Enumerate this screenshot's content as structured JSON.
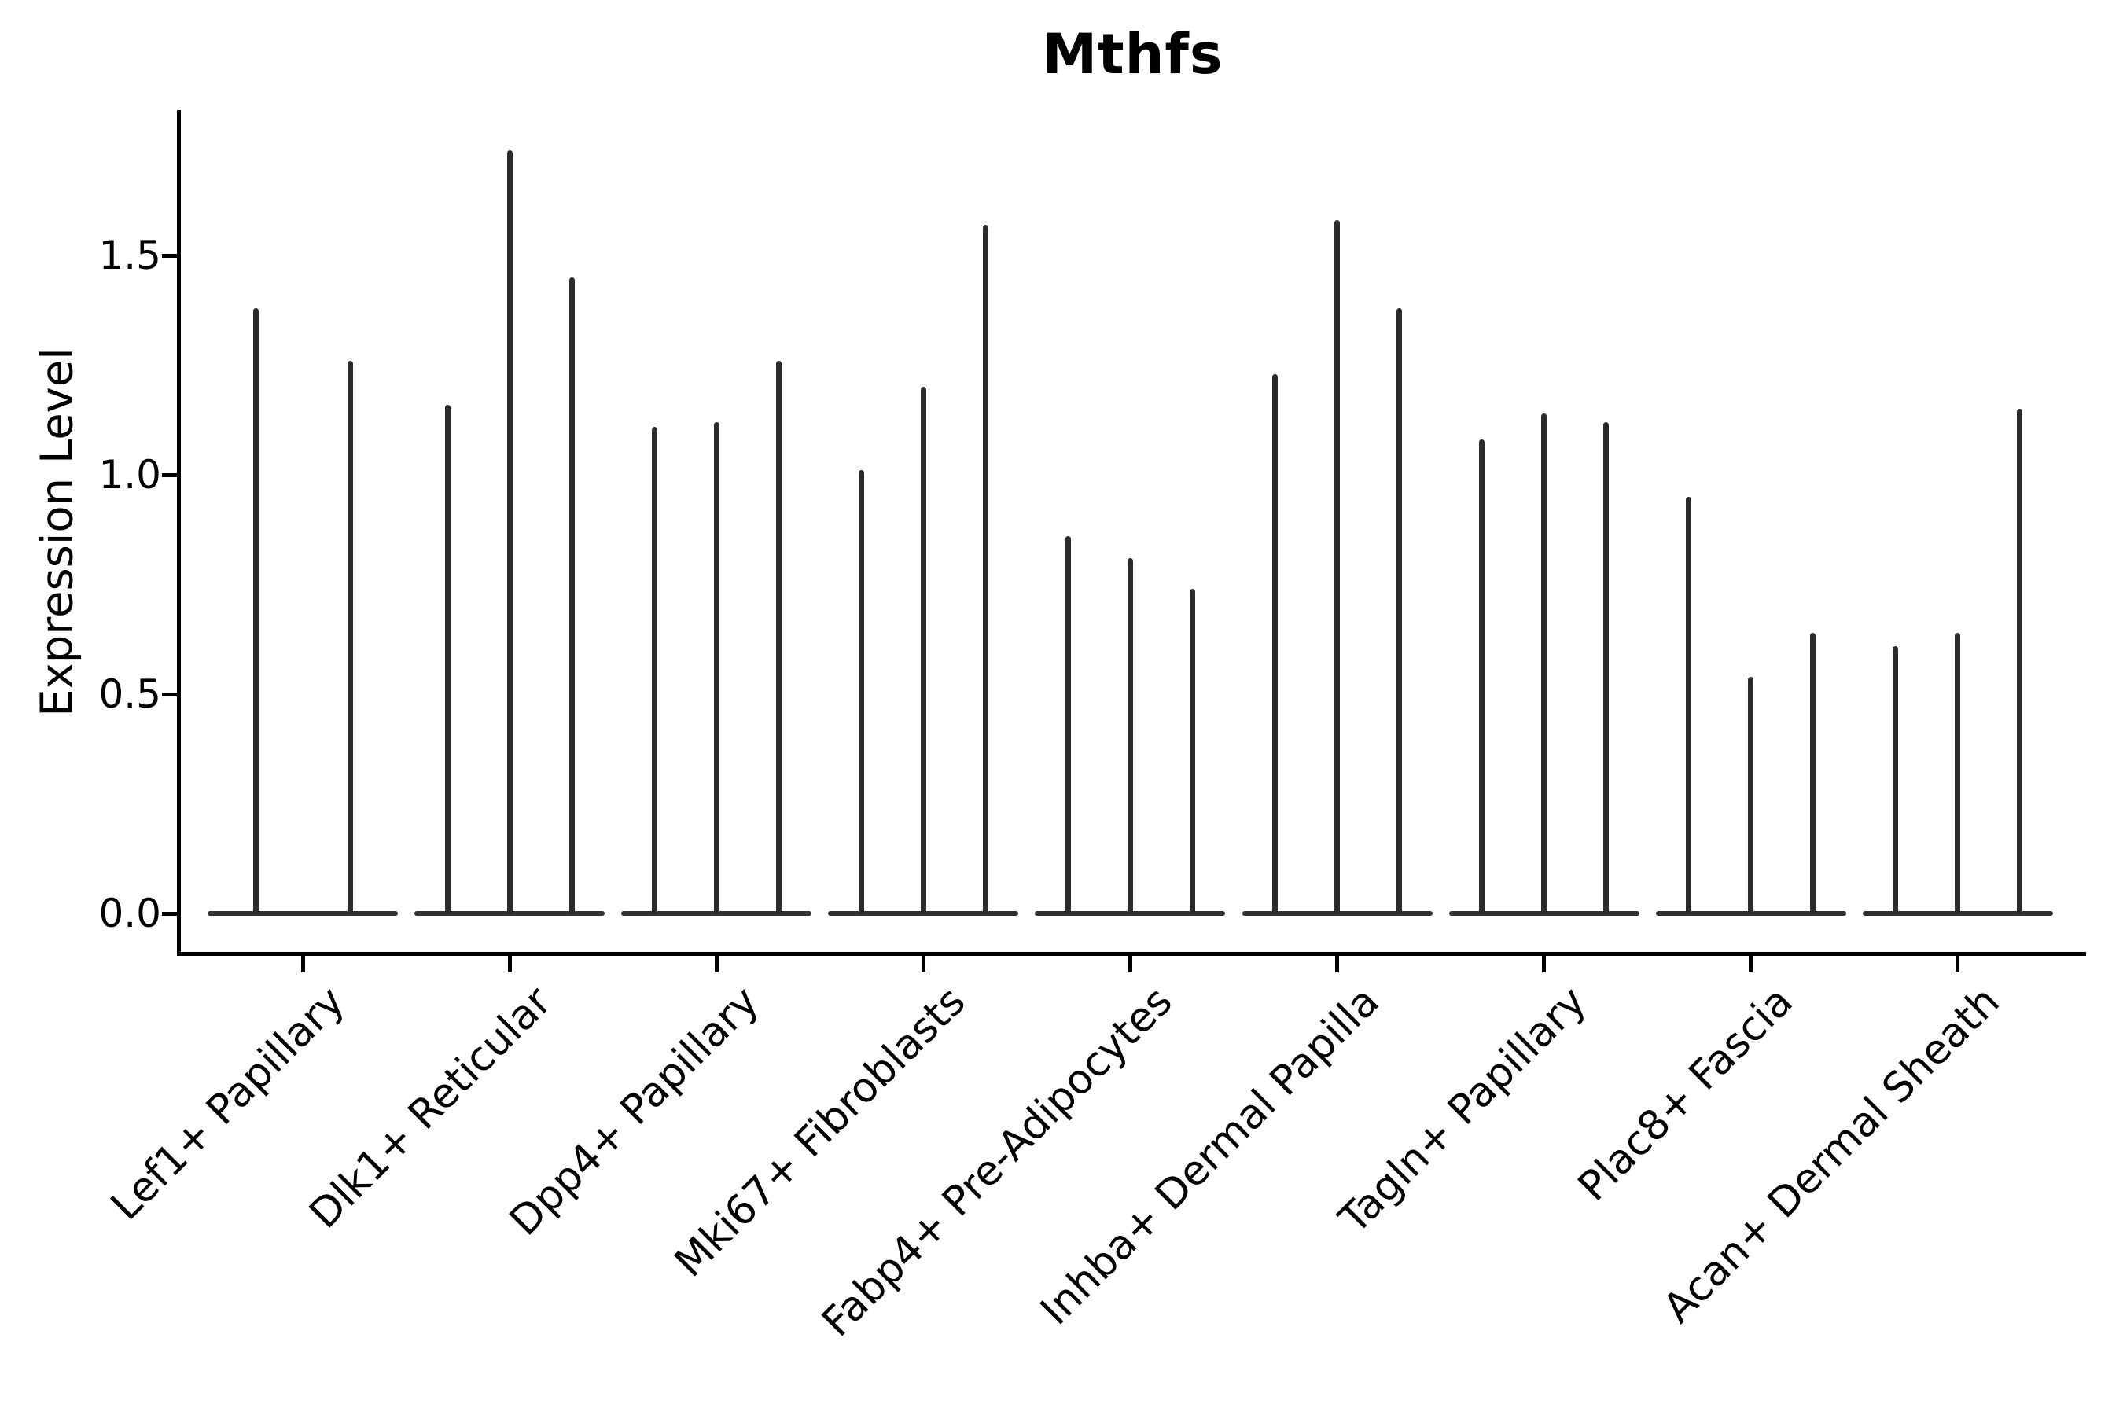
{
  "title": "Mthfs",
  "y_axis": {
    "label": "Expression Level",
    "tick_labels": [
      "0.0",
      "0.5",
      "1.0",
      "1.5"
    ],
    "tick_values": [
      0.0,
      0.5,
      1.0,
      1.5
    ]
  },
  "colors": {
    "violin": "#2b2b2b",
    "violin_base": "#323232",
    "axis": "#000000",
    "text": "#000000",
    "background": "#ffffff"
  },
  "chart_data": {
    "type": "violin",
    "title": "Mthfs",
    "xlabel": "",
    "ylabel": "Expression Level",
    "ylim": [
      -0.09,
      1.83
    ],
    "yticks": [
      0.0,
      0.5,
      1.0,
      1.5
    ],
    "grid": false,
    "legend": false,
    "description": "Stacked-style violin plot of gene expression; each category holds 2-3 extremely thin violins (spikes) rising from a flat base at expression 0. Values are the top (max expression) of each spike.",
    "categories": [
      "Lef1+ Papillary",
      "Dlk1+ Reticular",
      "Dpp4+ Papillary",
      "Mki67+ Fibroblasts",
      "Fabp4+ Pre-Adipocytes",
      "Inhba+ Dermal Papilla",
      "Tagln+ Papillary",
      "Plac8+ Fascia",
      "Acan+ Dermal Sheath"
    ],
    "groups": [
      {
        "category": "Lef1+ Papillary",
        "spike_tops": [
          1.38,
          1.26
        ]
      },
      {
        "category": "Dlk1+ Reticular",
        "spike_tops": [
          1.16,
          1.74,
          1.45
        ]
      },
      {
        "category": "Dpp4+ Papillary",
        "spike_tops": [
          1.11,
          1.12,
          1.26
        ]
      },
      {
        "category": "Mki67+ Fibroblasts",
        "spike_tops": [
          1.01,
          1.2,
          1.57
        ]
      },
      {
        "category": "Fabp4+ Pre-Adipocytes",
        "spike_tops": [
          0.86,
          0.81,
          0.74
        ]
      },
      {
        "category": "Inhba+ Dermal Papilla",
        "spike_tops": [
          1.23,
          1.58,
          1.38
        ]
      },
      {
        "category": "Tagln+ Papillary",
        "spike_tops": [
          1.08,
          1.14,
          1.12
        ]
      },
      {
        "category": "Plac8+ Fascia",
        "spike_tops": [
          0.95,
          0.54,
          0.64
        ]
      },
      {
        "category": "Acan+ Dermal Sheath",
        "spike_tops": [
          0.61,
          0.64,
          1.15
        ]
      }
    ]
  }
}
